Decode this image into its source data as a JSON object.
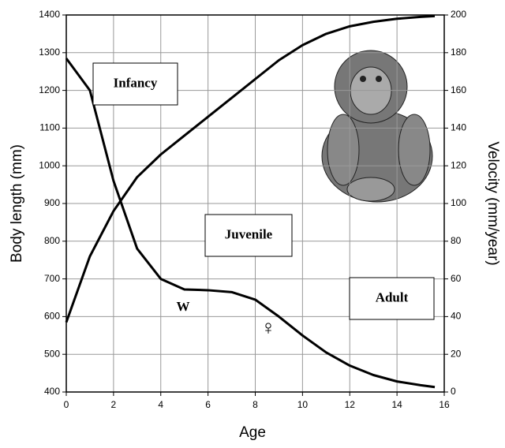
{
  "chart_data": {
    "type": "line",
    "xlabel": "Age",
    "ylabel": "Body length (mm)",
    "y2label": "Velocity (mm/year)",
    "x": [
      0,
      1,
      2,
      3,
      4,
      5,
      6,
      7,
      8,
      9,
      10,
      11,
      12,
      13,
      14,
      15,
      15.6
    ],
    "series": [
      {
        "color": "#000000",
        "values": [
          585,
          760,
          880,
          970,
          1030,
          1080,
          1130,
          1180,
          1230,
          1280,
          1320,
          1350,
          1370,
          1382,
          1390,
          1395,
          1397
        ]
      },
      {
        "color": "#000000",
        "axis": "y2",
        "values": [
          177,
          160,
          112,
          76,
          60,
          54.4,
          54,
          53,
          49,
          40,
          30,
          21,
          14,
          9,
          5.6,
          3.6,
          2.6
        ]
      }
    ],
    "xlim": [
      0,
      16
    ],
    "xticks": [
      0,
      2,
      4,
      6,
      8,
      10,
      12,
      14,
      16
    ],
    "ylim": [
      400,
      1400
    ],
    "yticks": [
      400,
      500,
      600,
      700,
      800,
      900,
      1000,
      1100,
      1200,
      1300,
      1400
    ],
    "y2lim": [
      0,
      200
    ],
    "y2ticks": [
      0,
      20,
      40,
      60,
      80,
      100,
      120,
      140,
      160,
      180,
      200
    ],
    "grid": true,
    "annotations": [
      "Infancy",
      "Juvenile",
      "Adult",
      "W",
      "♀"
    ]
  }
}
